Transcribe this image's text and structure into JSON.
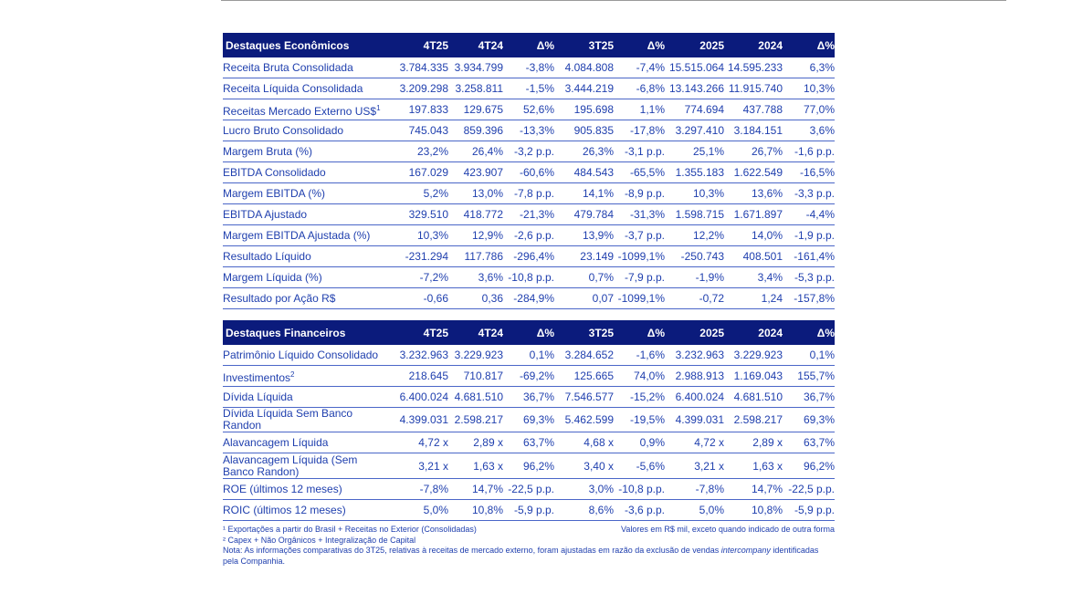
{
  "columns": [
    "4T25",
    "4T24",
    "Δ%",
    "3T25",
    "Δ%",
    "2025",
    "2024",
    "Δ%"
  ],
  "economic": {
    "title": "Destaques Econômicos",
    "rows": [
      {
        "label": "Receita Bruta Consolidada",
        "values": [
          "3.784.335",
          "3.934.799",
          "-3,8%",
          "4.084.808",
          "-7,4%",
          "15.515.064",
          "14.595.233",
          "6,3%"
        ]
      },
      {
        "label": "Receita Líquida Consolidada",
        "values": [
          "3.209.298",
          "3.258.811",
          "-1,5%",
          "3.444.219",
          "-6,8%",
          "13.143.266",
          "11.915.740",
          "10,3%"
        ]
      },
      {
        "label": "Receitas Mercado Externo US$",
        "sup": "1",
        "values": [
          "197.833",
          "129.675",
          "52,6%",
          "195.698",
          "1,1%",
          "774.694",
          "437.788",
          "77,0%"
        ]
      },
      {
        "label": "Lucro Bruto Consolidado",
        "values": [
          "745.043",
          "859.396",
          "-13,3%",
          "905.835",
          "-17,8%",
          "3.297.410",
          "3.184.151",
          "3,6%"
        ]
      },
      {
        "label": "Margem Bruta (%)",
        "values": [
          "23,2%",
          "26,4%",
          "-3,2 p.p.",
          "26,3%",
          "-3,1 p.p.",
          "25,1%",
          "26,7%",
          "-1,6 p.p."
        ]
      },
      {
        "label": "EBITDA Consolidado",
        "values": [
          "167.029",
          "423.907",
          "-60,6%",
          "484.543",
          "-65,5%",
          "1.355.183",
          "1.622.549",
          "-16,5%"
        ]
      },
      {
        "label": "Margem EBITDA (%)",
        "values": [
          "5,2%",
          "13,0%",
          "-7,8 p.p.",
          "14,1%",
          "-8,9 p.p.",
          "10,3%",
          "13,6%",
          "-3,3 p.p."
        ]
      },
      {
        "label": "EBITDA Ajustado",
        "values": [
          "329.510",
          "418.772",
          "-21,3%",
          "479.784",
          "-31,3%",
          "1.598.715",
          "1.671.897",
          "-4,4%"
        ]
      },
      {
        "label": "Margem EBITDA Ajustada (%)",
        "values": [
          "10,3%",
          "12,9%",
          "-2,6 p.p.",
          "13,9%",
          "-3,7 p.p.",
          "12,2%",
          "14,0%",
          "-1,9 p.p."
        ]
      },
      {
        "label": "Resultado Líquido",
        "values": [
          "-231.294",
          "117.786",
          "-296,4%",
          "23.149",
          "-1099,1%",
          "-250.743",
          "408.501",
          "-161,4%"
        ]
      },
      {
        "label": "Margem Líquida (%)",
        "values": [
          "-7,2%",
          "3,6%",
          "-10,8 p.p.",
          "0,7%",
          "-7,9 p.p.",
          "-1,9%",
          "3,4%",
          "-5,3 p.p."
        ]
      },
      {
        "label": "Resultado por Ação R$",
        "values": [
          "-0,66",
          "0,36",
          "-284,9%",
          "0,07",
          "-1099,1%",
          "-0,72",
          "1,24",
          "-157,8%"
        ]
      }
    ]
  },
  "financial": {
    "title": "Destaques Financeiros",
    "rows": [
      {
        "label": "Patrimônio Líquido Consolidado",
        "values": [
          "3.232.963",
          "3.229.923",
          "0,1%",
          "3.284.652",
          "-1,6%",
          "3.232.963",
          "3.229.923",
          "0,1%"
        ]
      },
      {
        "label": "Investimentos",
        "sup": "2",
        "values": [
          "218.645",
          "710.817",
          "-69,2%",
          "125.665",
          "74,0%",
          "2.988.913",
          "1.169.043",
          "155,7%"
        ]
      },
      {
        "label": "Dívida Líquida",
        "values": [
          "6.400.024",
          "4.681.510",
          "36,7%",
          "7.546.577",
          "-15,2%",
          "6.400.024",
          "4.681.510",
          "36,7%"
        ]
      },
      {
        "label": "Dívida Líquida Sem Banco Randon",
        "values": [
          "4.399.031",
          "2.598.217",
          "69,3%",
          "5.462.599",
          "-19,5%",
          "4.399.031",
          "2.598.217",
          "69,3%"
        ]
      },
      {
        "label": "Alavancagem Líquida",
        "values": [
          "4,72 x",
          "2,89 x",
          "63,7%",
          "4,68 x",
          "0,9%",
          "4,72 x",
          "2,89 x",
          "63,7%"
        ]
      },
      {
        "label": "Alavancagem Líquida (Sem Banco Randon)",
        "tall": true,
        "values": [
          "3,21 x",
          "1,63 x",
          "96,2%",
          "3,40 x",
          "-5,6%",
          "3,21 x",
          "1,63 x",
          "96,2%"
        ]
      },
      {
        "label": "ROE (últimos 12 meses)",
        "values": [
          "-7,8%",
          "14,7%",
          "-22,5 p.p.",
          "3,0%",
          "-10,8 p.p.",
          "-7,8%",
          "14,7%",
          "-22,5 p.p."
        ]
      },
      {
        "label": "ROIC (últimos 12 meses)",
        "values": [
          "5,0%",
          "10,8%",
          "-5,9 p.p.",
          "8,6%",
          "-3,6 p.p.",
          "5,0%",
          "10,8%",
          "-5,9 p.p."
        ]
      }
    ]
  },
  "notes": {
    "fn1": "¹ Exportações a partir do Brasil + Receitas no Exterior (Consolidadas)",
    "units": "Valores em R$ mil, exceto quando indicado de outra forma",
    "fn2": "² Capex + Não Orgânicos + Integralização de Capital",
    "nota_pre": "Nota: As informações comparativas do 3T25, relativas à receitas de mercado externo, foram ajustadas em razão da exclusão de vendas ",
    "nota_italic": "intercompany",
    "nota_post": " identificadas pela Companhia."
  },
  "colors": {
    "header_bg": "#0b1b7c",
    "text": "#1f3fae",
    "rule": "#4a66c8"
  }
}
